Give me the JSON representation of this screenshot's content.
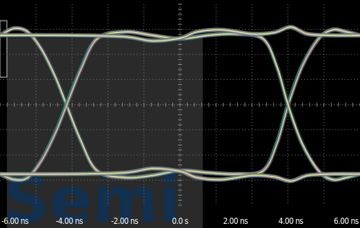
{
  "chart_data": {
    "type": "line",
    "title": "",
    "xlabel": "",
    "ylabel": "",
    "xlim": [
      -6.5,
      6.5
    ],
    "ylim": [
      -1.45,
      1.45
    ],
    "x_tick_values": [
      -6,
      -4,
      -2,
      0,
      2,
      4,
      6
    ],
    "x_tick_labels": [
      "-6.00 ns",
      "-4.00 ns",
      "-2.00 ns",
      "0.0 s",
      "2.00 ns",
      "4.00 ns",
      "6.00 ns"
    ],
    "grid": true,
    "diagram": "eye diagram (persistence overlay)",
    "bit_period_ns": 8.0,
    "crossings_ns": [
      -4.1,
      3.9
    ],
    "levels": {
      "high": 1.0,
      "low": -1.0
    },
    "overshoot_peak": 1.12,
    "series": [
      {
        "x": [
          -6.5,
          -6.0,
          -5.5,
          -5.0,
          -4.5,
          -4.1,
          -3.6,
          -3.0,
          -2.0,
          -1.0,
          0.0,
          1.0,
          2.0,
          3.0,
          3.5,
          3.9,
          4.4,
          5.0,
          5.5,
          6.0,
          6.5
        ],
        "y": [
          1.0,
          1.1,
          1.05,
          0.8,
          0.4,
          0.0,
          -0.5,
          -0.95,
          -1.05,
          -1.02,
          -0.95,
          -0.98,
          -1.0,
          -0.95,
          -0.55,
          0.0,
          0.55,
          0.95,
          1.08,
          1.05,
          1.0
        ]
      },
      {
        "x": [
          -6.5,
          -6.0,
          -5.5,
          -5.0,
          -4.5,
          -4.1,
          -3.6,
          -3.0,
          -2.0,
          -1.0,
          0.0,
          1.0,
          2.0,
          3.0,
          3.5,
          3.9,
          4.4,
          5.0,
          5.5,
          6.0,
          6.5
        ],
        "y": [
          -1.0,
          -1.08,
          -1.05,
          -0.8,
          -0.4,
          0.0,
          0.5,
          0.95,
          1.05,
          1.0,
          0.95,
          1.0,
          1.02,
          0.95,
          0.55,
          0.0,
          -0.55,
          -0.95,
          -1.08,
          -1.05,
          -1.0
        ]
      },
      {
        "x": [
          -6.5,
          -4.0,
          -2.0,
          -1.0,
          0.0,
          0.6,
          1.5,
          2.6,
          3.4,
          4.0,
          4.6,
          5.5,
          6.5
        ],
        "y": [
          1.0,
          1.0,
          0.98,
          0.92,
          0.96,
          1.05,
          1.08,
          1.02,
          1.04,
          1.12,
          1.02,
          1.0,
          1.0
        ]
      },
      {
        "x": [
          -6.5,
          -4.0,
          -2.0,
          -1.0,
          0.0,
          0.6,
          1.5,
          2.6,
          3.4,
          4.0,
          4.6,
          5.5,
          6.5
        ],
        "y": [
          -1.0,
          -1.0,
          -0.98,
          -0.92,
          -0.96,
          -1.05,
          -1.08,
          -1.02,
          -1.04,
          -1.1,
          -1.02,
          -1.0,
          -1.0
        ]
      }
    ],
    "persistence_colors": [
      "#2f9c58",
      "#7fd04a",
      "#c8d93a",
      "#e0a52c",
      "#d9605a",
      "#c05fd8",
      "#5a8fe0",
      "#e8e8e8"
    ],
    "watermark": "Semi"
  },
  "colors": {
    "background": "#000000",
    "left_panel": "#2a2a2a",
    "grid": "#7a7a7a",
    "label": "#ffffff",
    "watermark": "#12304f"
  }
}
